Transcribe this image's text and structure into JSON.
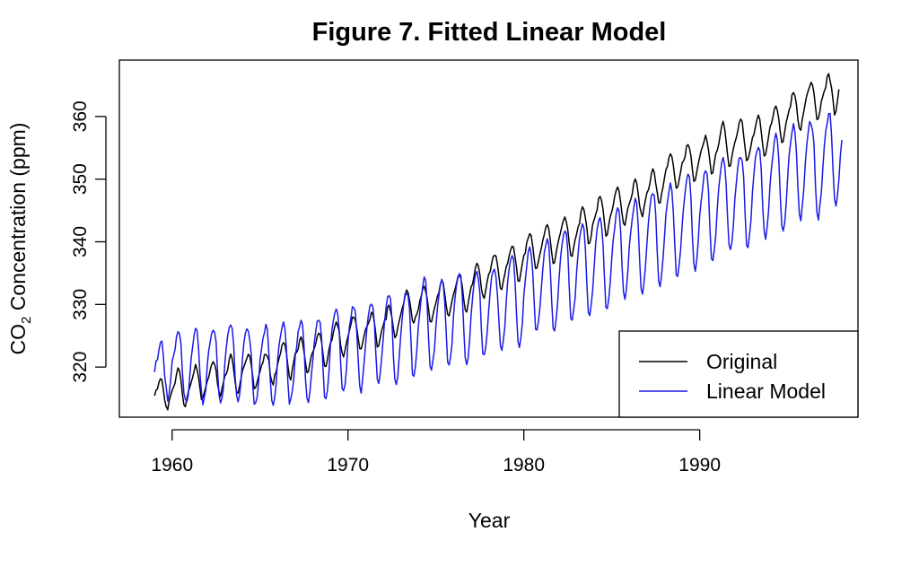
{
  "chart_data": {
    "type": "line",
    "title": "Figure 7. Fitted Linear Model",
    "xlabel": "Year",
    "ylabel_prefix": "CO",
    "ylabel_subscript": "2",
    "ylabel_suffix": " Concentration (ppm)",
    "xlim": [
      1957.0,
      1999.0
    ],
    "ylim": [
      312.0,
      369.0
    ],
    "x_ticks": [
      "1960",
      "1970",
      "1980",
      "1990"
    ],
    "y_ticks": [
      "320",
      "330",
      "340",
      "350",
      "360"
    ],
    "legend_position": "bottom-right",
    "grid": false,
    "x_start": 1959.0,
    "x_step": 0.0833333,
    "series": [
      {
        "name": "Original",
        "color": "#000000",
        "values": [
          315.42,
          316.31,
          316.5,
          317.56,
          318.13,
          318.0,
          316.39,
          314.65,
          313.68,
          313.18,
          314.66,
          315.43,
          316.27,
          316.81,
          317.42,
          318.87,
          319.87,
          319.43,
          318.01,
          315.74,
          314.0,
          313.68,
          314.84,
          316.03,
          316.73,
          317.54,
          318.38,
          319.31,
          320.42,
          319.61,
          318.42,
          316.63,
          314.83,
          315.16,
          315.94,
          316.85,
          317.78,
          318.4,
          319.53,
          320.42,
          320.85,
          320.45,
          319.45,
          317.25,
          316.11,
          315.27,
          316.53,
          317.53,
          318.58,
          318.92,
          319.7,
          321.22,
          322.08,
          321.31,
          319.58,
          317.61,
          316.05,
          315.83,
          316.91,
          318.2,
          319.41,
          320.07,
          320.74,
          321.4,
          322.06,
          321.73,
          320.27,
          318.54,
          316.54,
          316.71,
          317.53,
          318.55,
          319.27,
          320.28,
          320.73,
          321.97,
          322.0,
          321.71,
          321.05,
          318.71,
          317.66,
          317.14,
          318.7,
          319.25,
          320.46,
          321.43,
          322.23,
          323.54,
          323.91,
          323.59,
          322.24,
          320.2,
          318.48,
          317.94,
          319.63,
          320.87,
          322.17,
          322.34,
          322.88,
          324.25,
          324.83,
          323.93,
          322.38,
          320.76,
          319.1,
          319.24,
          320.56,
          321.8,
          322.4,
          322.99,
          323.73,
          324.86,
          325.4,
          325.2,
          323.98,
          321.95,
          320.18,
          320.09,
          321.16,
          322.74,
          323.83,
          324.26,
          325.47,
          326.5,
          327.21,
          326.54,
          325.72,
          323.5,
          322.22,
          321.62,
          322.69,
          323.95,
          324.89,
          325.82,
          326.77,
          327.97,
          327.91,
          327.5,
          326.18,
          324.53,
          322.93,
          322.9,
          323.85,
          324.96,
          326.01,
          326.51,
          327.01,
          327.62,
          328.76,
          328.4,
          327.2,
          325.27,
          323.2,
          323.4,
          324.63,
          325.85,
          326.6,
          327.47,
          327.58,
          329.56,
          329.9,
          328.92,
          327.88,
          326.16,
          324.68,
          325.04,
          326.34,
          327.39,
          328.37,
          329.4,
          330.14,
          331.33,
          332.31,
          331.9,
          330.7,
          329.15,
          327.35,
          327.02,
          327.99,
          328.48,
          329.18,
          330.55,
          331.32,
          332.48,
          332.92,
          332.08,
          331.01,
          329.23,
          327.27,
          327.21,
          328.29,
          329.41,
          330.23,
          331.25,
          331.87,
          333.14,
          333.8,
          333.43,
          331.73,
          329.9,
          328.4,
          328.17,
          329.32,
          330.59,
          331.58,
          332.39,
          333.33,
          334.41,
          334.71,
          334.17,
          332.89,
          330.77,
          329.14,
          328.78,
          330.14,
          331.52,
          332.75,
          333.24,
          334.53,
          335.9,
          336.57,
          336.1,
          334.76,
          332.59,
          331.42,
          330.98,
          332.24,
          333.68,
          334.8,
          335.22,
          336.47,
          337.59,
          337.84,
          337.72,
          336.37,
          334.51,
          332.6,
          332.38,
          333.75,
          334.78,
          336.05,
          336.59,
          337.79,
          338.71,
          339.3,
          339.12,
          337.56,
          335.92,
          333.75,
          333.7,
          335.12,
          336.56,
          337.84,
          338.19,
          339.91,
          340.6,
          341.29,
          341.0,
          339.39,
          337.43,
          335.72,
          335.84,
          336.93,
          338.04,
          339.06,
          340.3,
          341.21,
          342.33,
          342.74,
          342.08,
          340.32,
          338.26,
          336.52,
          336.68,
          338.19,
          339.44,
          340.57,
          341.44,
          342.53,
          343.39,
          343.96,
          343.18,
          341.88,
          339.65,
          337.81,
          337.69,
          339.09,
          340.32,
          341.2,
          342.35,
          342.93,
          344.77,
          345.58,
          345.14,
          343.81,
          342.21,
          339.69,
          339.82,
          340.98,
          342.82,
          343.52,
          344.33,
          345.11,
          346.88,
          347.25,
          346.62,
          345.22,
          343.11,
          340.9,
          341.18,
          342.8,
          344.04,
          344.79,
          345.82,
          347.25,
          348.17,
          348.74,
          348.07,
          346.38,
          344.51,
          342.92,
          342.62,
          344.06,
          345.38,
          346.11,
          346.78,
          347.68,
          349.37,
          350.03,
          349.37,
          347.76,
          345.73,
          344.68,
          343.99,
          345.48,
          346.72,
          347.84,
          348.29,
          349.23,
          350.8,
          351.66,
          351.07,
          349.33,
          347.92,
          346.27,
          346.18,
          347.64,
          348.78,
          350.25,
          351.54,
          352.05,
          353.41,
          354.04,
          353.62,
          352.22,
          350.27,
          348.55,
          348.72,
          349.91,
          351.18,
          352.6,
          352.92,
          353.53,
          355.26,
          355.52,
          354.97,
          353.75,
          351.52,
          349.64,
          349.83,
          351.14,
          352.37,
          353.5,
          354.55,
          355.23,
          356.04,
          357.0,
          356.07,
          354.67,
          352.76,
          350.82,
          351.04,
          352.69,
          354.07,
          354.59,
          355.63,
          357.03,
          358.48,
          359.22,
          358.12,
          356.06,
          353.92,
          352.05,
          352.11,
          353.64,
          354.89,
          355.88,
          356.63,
          357.72,
          359.07,
          359.58,
          359.17,
          356.94,
          354.92,
          352.94,
          353.23,
          354.09,
          355.33,
          356.63,
          357.1,
          358.32,
          359.41,
          360.23,
          359.55,
          357.53,
          355.48,
          353.67,
          353.95,
          355.3,
          356.78,
          358.34,
          358.89,
          359.95,
          361.25,
          361.67,
          360.94,
          359.55,
          357.49,
          355.84,
          356.0,
          357.59,
          359.05,
          359.98,
          361.03,
          361.66,
          363.48,
          363.82,
          363.3,
          361.94,
          359.5,
          358.11,
          357.8,
          359.61,
          360.74,
          362.09,
          363.29,
          364.06,
          364.76,
          365.45,
          365.01,
          363.7,
          361.54,
          359.51,
          359.65,
          360.8,
          362.38,
          363.23,
          364.06,
          364.61,
          366.4,
          366.84,
          365.68,
          364.52,
          362.57,
          360.24,
          360.83,
          362.49,
          364.34
        ]
      },
      {
        "name": "Linear Model",
        "color": "#1a1ae6",
        "values": [
          319.19,
          320.95,
          321.17,
          322.73,
          323.91,
          324.17,
          321.84,
          318.36,
          316.72,
          314.56,
          315.8,
          317.94,
          320.95,
          321.79,
          322.83,
          324.86,
          325.64,
          325.36,
          323.83,
          319.28,
          315.87,
          314.85,
          314.47,
          315.43,
          318.39,
          321.39,
          323.23,
          325.09,
          326.18,
          325.88,
          323.16,
          318.9,
          316.17,
          313.97,
          315.24,
          316.4,
          320.43,
          322.66,
          324.01,
          325.4,
          325.89,
          325.56,
          324.04,
          319.37,
          315.58,
          314.28,
          315.0,
          316.62,
          320.7,
          323.15,
          325.2,
          326.31,
          326.72,
          326.14,
          323.54,
          318.37,
          315.49,
          314.45,
          315.49,
          317.7,
          321.33,
          323.92,
          325.45,
          326.09,
          325.75,
          324.3,
          322.02,
          317.11,
          314.07,
          314.31,
          315.15,
          317.49,
          321.17,
          322.82,
          324.61,
          325.47,
          326.82,
          325.95,
          322.26,
          317.87,
          314.68,
          313.88,
          315.07,
          317.34,
          321.2,
          323.61,
          325.03,
          326.32,
          327.22,
          326.12,
          322.95,
          317.54,
          314.08,
          314.94,
          316.14,
          318.0,
          321.74,
          323.27,
          325.67,
          326.51,
          327.46,
          326.76,
          323.43,
          318.06,
          315.06,
          314.33,
          315.92,
          318.68,
          321.07,
          323.87,
          325.69,
          327.31,
          327.48,
          327.14,
          324.54,
          319.61,
          315.2,
          314.94,
          316.32,
          319.07,
          323.34,
          325.78,
          327.41,
          328.62,
          329.25,
          328.53,
          325.91,
          320.63,
          316.56,
          316.21,
          317.16,
          319.76,
          324.1,
          326.46,
          327.82,
          329.64,
          329.42,
          328.92,
          325.4,
          320.98,
          316.95,
          315.84,
          318.04,
          320.71,
          323.52,
          326.49,
          328.38,
          329.78,
          330.04,
          329.6,
          327.18,
          322.2,
          318.05,
          317.38,
          318.98,
          321.5,
          324.43,
          327.35,
          329.52,
          331.19,
          331.41,
          330.95,
          327.6,
          321.62,
          318.02,
          317.2,
          318.54,
          321.69,
          325.06,
          327.77,
          330.08,
          331.75,
          331.76,
          331.4,
          329.3,
          324.12,
          318.79,
          318.53,
          320.06,
          322.73,
          326.48,
          328.75,
          331.03,
          332.89,
          334.37,
          333.85,
          329.98,
          324.49,
          320.12,
          319.5,
          321.16,
          322.74,
          326.43,
          329.35,
          331.35,
          333.11,
          334.01,
          333.21,
          330.5,
          325.63,
          320.76,
          320.33,
          321.62,
          323.74,
          328.18,
          330.96,
          332.99,
          334.22,
          334.91,
          334.59,
          331.36,
          326.12,
          321.49,
          320.38,
          321.47,
          324.24,
          328.26,
          331.03,
          333.34,
          334.78,
          335.27,
          333.96,
          331.87,
          326.08,
          322.12,
          321.98,
          323.12,
          325.58,
          328.98,
          331.98,
          334.39,
          335.3,
          335.6,
          334.38,
          331.47,
          327.28,
          323.43,
          322.66,
          324.25,
          326.32,
          330.53,
          333.71,
          335.79,
          337.12,
          337.78,
          337.17,
          333.73,
          328.45,
          324.1,
          323.11,
          324.68,
          327.03,
          331.45,
          333.87,
          336.15,
          338.39,
          339.17,
          338.05,
          335.45,
          330.64,
          326.03,
          325.91,
          327.33,
          329.56,
          332.76,
          335.77,
          338.32,
          339.46,
          340.47,
          339.51,
          335.87,
          330.53,
          326.18,
          325.76,
          327.53,
          330.09,
          334.0,
          337.33,
          339.45,
          341.02,
          341.71,
          341.34,
          338.42,
          332.61,
          327.76,
          327.49,
          329.19,
          331.03,
          335.15,
          338.09,
          340.53,
          341.86,
          342.87,
          342.17,
          338.84,
          333.31,
          328.7,
          328.22,
          330.06,
          332.35,
          336.06,
          339.64,
          341.96,
          343.3,
          343.86,
          342.68,
          339.73,
          334.34,
          329.54,
          329.34,
          330.99,
          333.65,
          337.39,
          340.36,
          342.14,
          344.46,
          345.43,
          344.89,
          341.95,
          336.19,
          331.96,
          330.82,
          332.47,
          335.45,
          339.38,
          341.67,
          343.74,
          345.36,
          346.93,
          346.21,
          342.69,
          337.16,
          332.49,
          331.64,
          333.51,
          336.09,
          339.71,
          343.03,
          345.43,
          347.37,
          347.66,
          347.41,
          344.32,
          338.47,
          333.68,
          332.84,
          334.72,
          337.39,
          340.87,
          344.48,
          346.35,
          347.99,
          349.4,
          348.19,
          344.68,
          339.61,
          334.69,
          334.47,
          336.4,
          338.69,
          342.57,
          345.5,
          347.76,
          349.81,
          350.78,
          350.42,
          347.17,
          340.87,
          336.57,
          335.28,
          337.09,
          340.13,
          344.18,
          346.51,
          348.49,
          350.81,
          351.32,
          350.86,
          348.03,
          342.1,
          337.3,
          336.99,
          338.78,
          341.1,
          345.29,
          348.59,
          350.69,
          352.62,
          353.45,
          352.31,
          349.32,
          343.91,
          339.53,
          338.76,
          339.94,
          342.67,
          346.86,
          349.35,
          351.94,
          353.39,
          353.41,
          352.91,
          350.32,
          344.43,
          339.39,
          339.07,
          341.11,
          343.49,
          347.95,
          350.76,
          353.37,
          354.4,
          355.06,
          354.61,
          351.41,
          345.7,
          341.69,
          340.39,
          342.34,
          344.89,
          349.15,
          351.79,
          353.86,
          356.13,
          357.33,
          356.21,
          353.0,
          347.29,
          342.59,
          341.71,
          343.05,
          345.99,
          350.16,
          353.77,
          355.73,
          357.51,
          358.86,
          357.45,
          354.32,
          348.81,
          344.45,
          343.36,
          345.75,
          348.28,
          352.27,
          355.31,
          357.41,
          359.2,
          358.72,
          357.77,
          355.62,
          348.98,
          344.71,
          343.47,
          345.88,
          347.86,
          351.68,
          355.17,
          357.67,
          358.87,
          360.45,
          360.46,
          356.82,
          351.41,
          346.86,
          345.71,
          347.38,
          349.98,
          353.79,
          356.26
        ]
      }
    ]
  }
}
